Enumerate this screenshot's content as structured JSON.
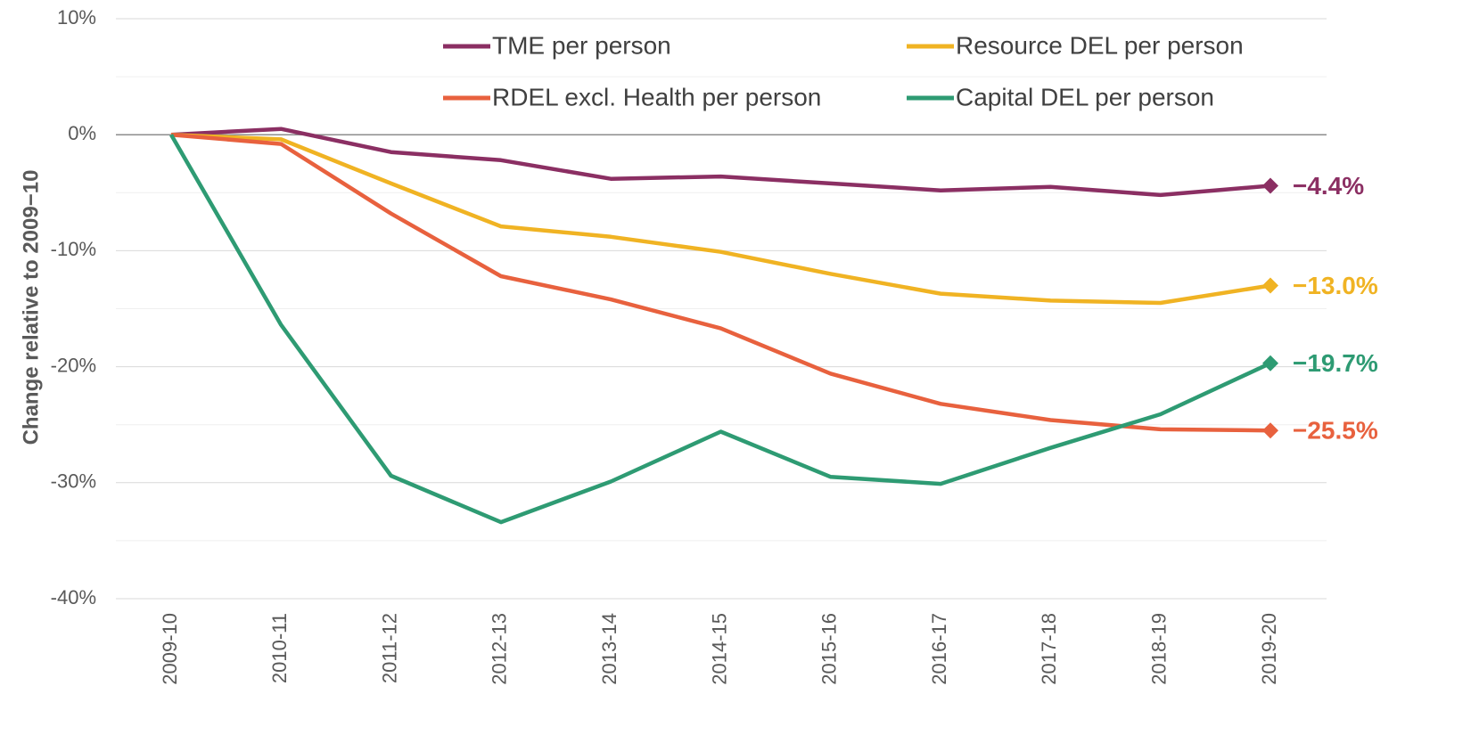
{
  "chart_data": {
    "type": "line",
    "y_label": "Change relative to 2009−10",
    "categories": [
      "2009-10",
      "2010-11",
      "2011-12",
      "2012-13",
      "2013-14",
      "2014-15",
      "2015-16",
      "2016-17",
      "2017-18",
      "2018-19",
      "2019-20"
    ],
    "series": [
      {
        "name": "TME per person",
        "color": "#8b2f63",
        "values": [
          0,
          0.5,
          -1.5,
          -2.2,
          -3.8,
          -3.6,
          -4.2,
          -4.8,
          -4.5,
          -5.2,
          -4.4
        ],
        "value_labels": [
          null,
          null,
          null,
          null,
          null,
          null,
          null,
          null,
          null,
          null,
          "−4.4%"
        ]
      },
      {
        "name": "Resource DEL per person",
        "color": "#f0b323",
        "values": [
          0,
          -0.4,
          -4.2,
          -7.9,
          -8.8,
          -10.1,
          -12.0,
          -13.7,
          -14.3,
          -14.5,
          -13.0
        ],
        "value_labels": [
          null,
          null,
          null,
          null,
          null,
          null,
          null,
          null,
          null,
          null,
          "−13.0%"
        ]
      },
      {
        "name": "RDEL excl. Health per person",
        "color": "#e8613e",
        "values": [
          0,
          -0.8,
          -6.8,
          -12.2,
          -14.2,
          -16.7,
          -20.6,
          -23.2,
          -24.6,
          -25.4,
          -25.5
        ],
        "value_labels": [
          null,
          null,
          null,
          null,
          null,
          null,
          null,
          null,
          null,
          null,
          "−25.5%"
        ]
      },
      {
        "name": "Capital DEL per person",
        "color": "#2e9b73",
        "values": [
          0,
          -16.4,
          -29.4,
          -33.4,
          -29.9,
          -25.6,
          -29.5,
          -30.1,
          -27.0,
          -24.1,
          -19.7
        ],
        "value_labels": [
          null,
          null,
          null,
          null,
          null,
          null,
          null,
          null,
          null,
          null,
          "−19.7%"
        ]
      }
    ],
    "ylim": [
      -40,
      10
    ],
    "yticks": [
      {
        "value": -40,
        "label": "-40%"
      },
      {
        "value": -30,
        "label": "-30%"
      },
      {
        "value": -20,
        "label": "-20%"
      },
      {
        "value": -10,
        "label": "-10%"
      },
      {
        "value": 0,
        "label": "0%"
      },
      {
        "value": 10,
        "label": "10%"
      }
    ],
    "minor_yticks": [
      -35,
      -25,
      -15,
      -5,
      5
    ],
    "grid": true
  }
}
